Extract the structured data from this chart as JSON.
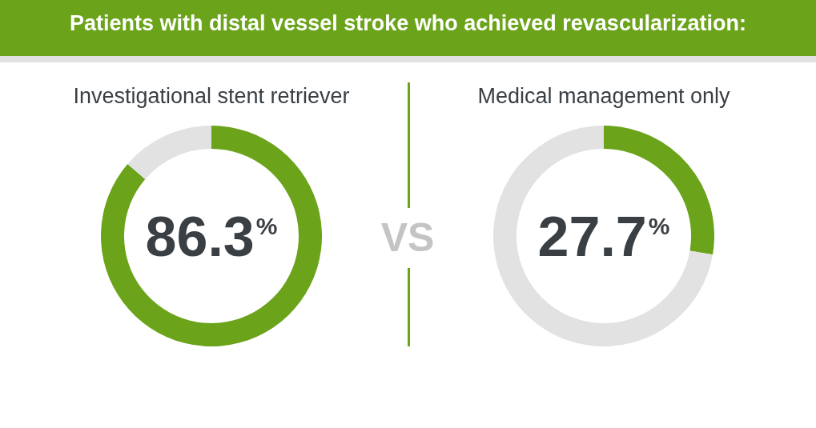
{
  "chart_data": [
    {
      "type": "donut",
      "title": "Patients with distal vessel stroke who achieved revascularization:",
      "subtitle": "Investigational stent retriever",
      "categories": [
        null,
        null
      ],
      "values": [
        86.3,
        13.7
      ],
      "colors": [
        "#6ba31a",
        "#e2e2e2"
      ],
      "annotations": [
        "86.3$^{%}$"
      ],
      "legend": false
    },
    {
      "type": "other",
      "annotations": [
        "VS"
      ]
    },
    {
      "type": "donut",
      "subtitle": "Medical management only",
      "categories": [
        null,
        null
      ],
      "values": [
        27.7,
        72.3
      ],
      "colors": [
        "#6ba31a",
        "#e2e2e2"
      ],
      "annotations": [
        "27.7$^{%}$"
      ],
      "legend": false
    }
  ]
}
